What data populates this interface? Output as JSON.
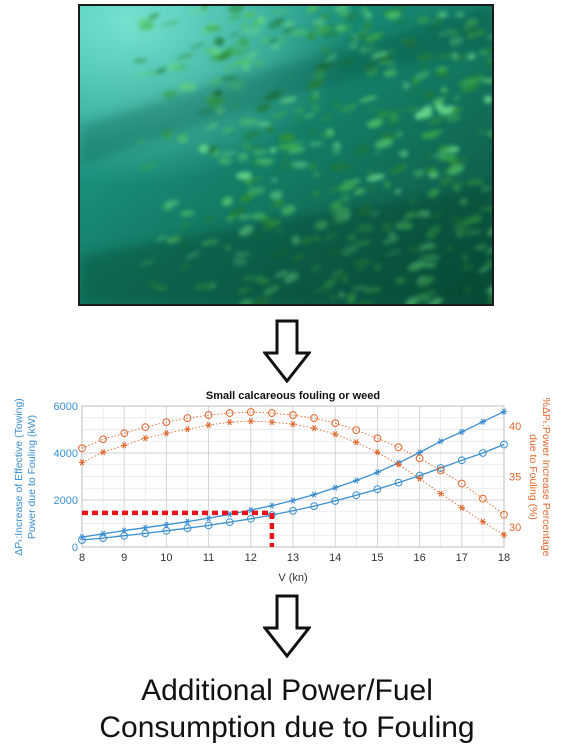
{
  "photo": {
    "description_icon": "underwater-hull-fouling-photo",
    "colors": {
      "base": "#0f5e4a",
      "water": "#1fa391",
      "weed": "#2f8f3c",
      "highlight": "#6ed3b6"
    }
  },
  "arrows": {
    "icon": "down-arrow-outline-icon"
  },
  "chart_data": {
    "type": "line",
    "title": "Small calcareous fouling or weed",
    "xlabel": "V (kn)",
    "ylabel_left_line1": "ΔPₜ:Increase of Effective (Towing)",
    "ylabel_left_line2": "Power due to Fouling (kW)",
    "ylabel_right_line1": "%ΔPₜ:Power Increase Percentage",
    "ylabel_right_line2": "due to Fouling (%)",
    "xlim": [
      8,
      18
    ],
    "ylim_left": [
      0,
      6000
    ],
    "ylim_right": [
      28,
      42
    ],
    "x_ticks": [
      8,
      9,
      10,
      11,
      12,
      13,
      14,
      15,
      16,
      17,
      18
    ],
    "y_ticks_left": [
      0,
      2000,
      4000,
      6000
    ],
    "y_ticks_right": [
      30,
      35,
      40
    ],
    "grid": true,
    "x": [
      8,
      8.5,
      9,
      9.5,
      10,
      10.5,
      11,
      11.5,
      12,
      12.5,
      13,
      13.5,
      14,
      14.5,
      15,
      15.5,
      16,
      16.5,
      17,
      17.5,
      18
    ],
    "series": [
      {
        "axis": "left",
        "marker": "star",
        "color": "#3a8fd0",
        "values": [
          420,
          560,
          700,
          820,
          950,
          1080,
          1230,
          1390,
          1570,
          1760,
          1980,
          2230,
          2520,
          2830,
          3180,
          3580,
          4020,
          4500,
          4900,
          5330,
          5760
        ]
      },
      {
        "axis": "left",
        "marker": "circle",
        "color": "#3a8fd0",
        "values": [
          300,
          380,
          480,
          580,
          690,
          800,
          920,
          1060,
          1200,
          1360,
          1540,
          1740,
          1960,
          2200,
          2460,
          2740,
          3040,
          3360,
          3690,
          4000,
          4360
        ]
      },
      {
        "axis": "right",
        "marker": "circle",
        "color": "#e0662a",
        "values": [
          37.8,
          38.7,
          39.3,
          39.9,
          40.4,
          40.8,
          41.1,
          41.3,
          41.4,
          41.3,
          41.1,
          40.8,
          40.3,
          39.6,
          38.8,
          37.9,
          36.8,
          35.6,
          34.3,
          32.8,
          31.2
        ]
      },
      {
        "axis": "right",
        "marker": "star",
        "color": "#e0662a",
        "values": [
          36.4,
          37.4,
          38.1,
          38.8,
          39.3,
          39.7,
          40.1,
          40.4,
          40.5,
          40.4,
          40.2,
          39.8,
          39.2,
          38.4,
          37.4,
          36.2,
          34.8,
          33.3,
          31.9,
          30.5,
          29.2
        ]
      }
    ],
    "annotation": {
      "style": "red-dashed-guide",
      "x": 12.5,
      "y": 1450,
      "color": "#e8141c"
    }
  },
  "conclusion": {
    "line1": "Additional Power/Fuel",
    "line2": "Consumption due to Fouling"
  }
}
